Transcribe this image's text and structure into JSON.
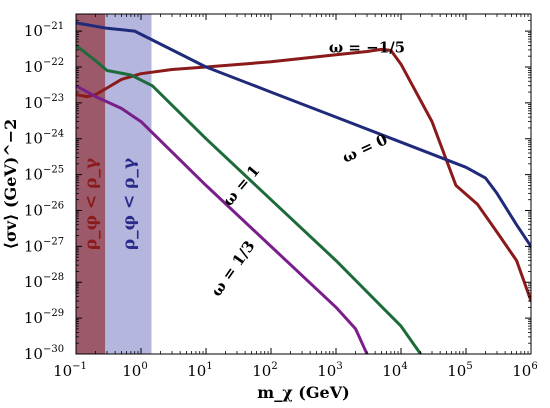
{
  "chart_data": {
    "type": "line",
    "xlabel": "m_χ (GeV)",
    "ylabel": "⟨σv⟩ (GeV)^−2",
    "xscale": "log",
    "yscale": "log",
    "xlim": [
      0.1,
      1000000
    ],
    "ylim": [
      1e-30,
      3e-21
    ],
    "grid": false,
    "x_ticks": [
      {
        "base": "10",
        "exp": "−1",
        "value": 0.1
      },
      {
        "base": "10",
        "exp": "0",
        "value": 1
      },
      {
        "base": "10",
        "exp": "1",
        "value": 10
      },
      {
        "base": "10",
        "exp": "2",
        "value": 100
      },
      {
        "base": "10",
        "exp": "3",
        "value": 1000
      },
      {
        "base": "10",
        "exp": "4",
        "value": 10000
      },
      {
        "base": "10",
        "exp": "5",
        "value": 100000
      },
      {
        "base": "10",
        "exp": "6",
        "value": 1000000
      }
    ],
    "y_ticks": [
      {
        "base": "10",
        "exp": "−21",
        "value": 1e-21
      },
      {
        "base": "10",
        "exp": "−22",
        "value": 1e-22
      },
      {
        "base": "10",
        "exp": "−23",
        "value": 1e-23
      },
      {
        "base": "10",
        "exp": "−24",
        "value": 1e-24
      },
      {
        "base": "10",
        "exp": "−25",
        "value": 1e-25
      },
      {
        "base": "10",
        "exp": "−26",
        "value": 1e-26
      },
      {
        "base": "10",
        "exp": "−27",
        "value": 1e-27
      },
      {
        "base": "10",
        "exp": "−28",
        "value": 1e-28
      },
      {
        "base": "10",
        "exp": "−29",
        "value": 1e-29
      },
      {
        "base": "10",
        "exp": "−30",
        "value": 1e-30
      }
    ],
    "regions": [
      {
        "label": "ρ_φ < ρ_γ",
        "x_range": [
          0.1,
          0.28
        ],
        "color": "#8b1a1a",
        "text_color": "#8b1a1a"
      },
      {
        "label": "ρ_φ < ρ_γ",
        "x_range": [
          0.1,
          1.45
        ],
        "color": "#8c8fcc",
        "text_color": "#2a2a8a"
      }
    ],
    "series": [
      {
        "name": "ω = −1/5",
        "color": "#8b1a1a",
        "label_at": [
          3000,
          2.5e-22
        ],
        "label_angle": 0,
        "points": [
          [
            0.1,
            1.7e-23
          ],
          [
            0.15,
            1.5e-23
          ],
          [
            0.2,
            1.7e-23
          ],
          [
            0.3,
            2.6e-23
          ],
          [
            0.5,
            4.5e-23
          ],
          [
            1,
            6.5e-23
          ],
          [
            3,
            8.5e-23
          ],
          [
            10,
            1e-22
          ],
          [
            100,
            1.4e-22
          ],
          [
            1000,
            2.2e-22
          ],
          [
            3000,
            2.7e-22
          ],
          [
            5000,
            3.1e-22
          ],
          [
            7000,
            2.9e-22
          ],
          [
            10000,
            1.2e-22
          ],
          [
            30000,
            3e-24
          ],
          [
            70000,
            5e-26
          ],
          [
            150000,
            1.5e-26
          ],
          [
            300000,
            2.5e-27
          ],
          [
            600000,
            4e-28
          ],
          [
            1000000,
            3e-29
          ]
        ]
      },
      {
        "name": "ω = 0",
        "color": "#1f2a7a",
        "label_at": [
          3000,
          4e-25
        ],
        "label_angle": -25,
        "points": [
          [
            0.1,
            1.7e-21
          ],
          [
            0.3,
            1.2e-21
          ],
          [
            0.8,
            1e-21
          ],
          [
            3,
            3e-22
          ],
          [
            10,
            1e-22
          ],
          [
            100,
            2e-23
          ],
          [
            1000,
            4e-24
          ],
          [
            10000,
            8e-25
          ],
          [
            100000,
            1.6e-25
          ],
          [
            200000,
            8e-26
          ],
          [
            300000,
            3e-26
          ],
          [
            600000,
            4e-27
          ],
          [
            1000000,
            1e-27
          ]
        ]
      },
      {
        "name": "ω = 1",
        "color": "#1e6b3a",
        "label_at": [
          40,
          4e-26
        ],
        "label_angle": -50,
        "points": [
          [
            0.1,
            4e-22
          ],
          [
            0.2,
            1.5e-22
          ],
          [
            0.3,
            8e-23
          ],
          [
            0.7,
            6e-23
          ],
          [
            1.5,
            3e-23
          ],
          [
            10,
            1e-24
          ],
          [
            100,
            2e-26
          ],
          [
            1000,
            4e-28
          ],
          [
            10000,
            6e-30
          ],
          [
            20000,
            1e-30
          ]
        ]
      },
      {
        "name": "ω = 1/3",
        "color": "#7a1f8a",
        "label_at": [
          30,
          2e-28
        ],
        "label_angle": -55,
        "points": [
          [
            0.1,
            3e-23
          ],
          [
            0.2,
            1.5e-23
          ],
          [
            0.5,
            7e-24
          ],
          [
            1,
            3e-24
          ],
          [
            10,
            5e-26
          ],
          [
            100,
            1e-27
          ],
          [
            1000,
            2e-29
          ],
          [
            2000,
            5e-30
          ],
          [
            3000,
            1e-30
          ]
        ]
      }
    ]
  }
}
